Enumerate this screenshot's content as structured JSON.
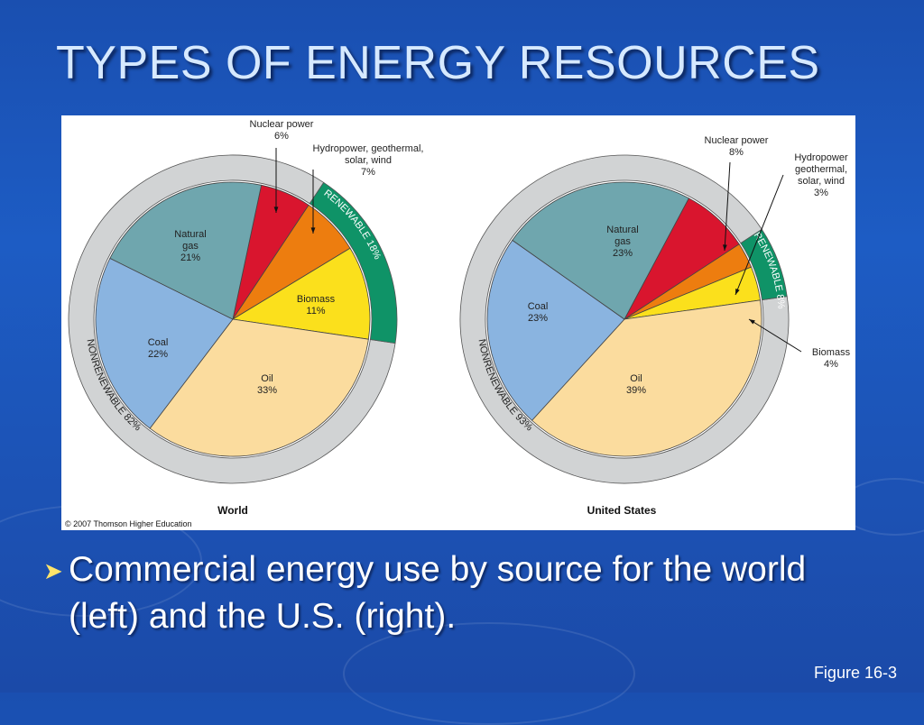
{
  "slide": {
    "title": "TYPES OF ENERGY RESOURCES",
    "bullet": "Commercial energy use by source for the world (left) and the U.S. (right).",
    "figure_ref": "Figure 16-3",
    "copyright": "© 2007 Thomson Higher Education"
  },
  "colors": {
    "background": "#1d56bc",
    "oil": "#fbdc9e",
    "coal": "#8ab4e0",
    "natural_gas": "#6fa6ae",
    "nuclear": "#d9152e",
    "hydro": "#ed7d0f",
    "biomass": "#fbe01c",
    "renewable_ring": "#0f9367",
    "nonrenewable_ring": "#d1d3d4"
  },
  "chart_data": [
    {
      "type": "pie",
      "title": "World",
      "slices": [
        {
          "key": "nuclear",
          "label_lines": [
            "Nuclear power",
            "6%"
          ],
          "value": 6,
          "color": "#d9152e"
        },
        {
          "key": "hydro",
          "label_lines": [
            "Hydropower, geothermal,",
            "solar, wind",
            "7%"
          ],
          "value": 7,
          "color": "#ed7d0f"
        },
        {
          "key": "biomass",
          "label_lines": [
            "Biomass",
            "11%"
          ],
          "value": 11,
          "color": "#fbe01c"
        },
        {
          "key": "oil",
          "label_lines": [
            "Oil",
            "33%"
          ],
          "value": 33,
          "color": "#fbdc9e"
        },
        {
          "key": "coal",
          "label_lines": [
            "Coal",
            "22%"
          ],
          "value": 22,
          "color": "#8ab4e0"
        },
        {
          "key": "natural_gas",
          "label_lines": [
            "Natural",
            "gas",
            "21%"
          ],
          "value": 21,
          "color": "#6fa6ae"
        }
      ],
      "rings": [
        {
          "label": "RENEWABLE 18%",
          "value": 18,
          "color": "#0f9367"
        },
        {
          "label": "NONRENEWABLE 82%",
          "value": 82,
          "color": "#d1d3d4"
        }
      ]
    },
    {
      "type": "pie",
      "title": "United States",
      "slices": [
        {
          "key": "nuclear",
          "label_lines": [
            "Nuclear power",
            "8%"
          ],
          "value": 8,
          "color": "#d9152e"
        },
        {
          "key": "hydro",
          "label_lines": [
            "Hydropower",
            "geothermal,",
            "solar, wind",
            "3%"
          ],
          "value": 3,
          "color": "#ed7d0f"
        },
        {
          "key": "biomass",
          "label_lines": [
            "Biomass",
            "4%"
          ],
          "value": 4,
          "color": "#fbe01c"
        },
        {
          "key": "oil",
          "label_lines": [
            "Oil",
            "39%"
          ],
          "value": 39,
          "color": "#fbdc9e"
        },
        {
          "key": "coal",
          "label_lines": [
            "Coal",
            "23%"
          ],
          "value": 23,
          "color": "#8ab4e0"
        },
        {
          "key": "natural_gas",
          "label_lines": [
            "Natural",
            "gas",
            "23%"
          ],
          "value": 23,
          "color": "#6fa6ae"
        }
      ],
      "rings": [
        {
          "label": "RENEWABLE 8%",
          "value": 8,
          "color": "#0f9367"
        },
        {
          "label": "NONRENEWABLE 93%",
          "value": 93,
          "color": "#d1d3d4"
        }
      ]
    }
  ]
}
